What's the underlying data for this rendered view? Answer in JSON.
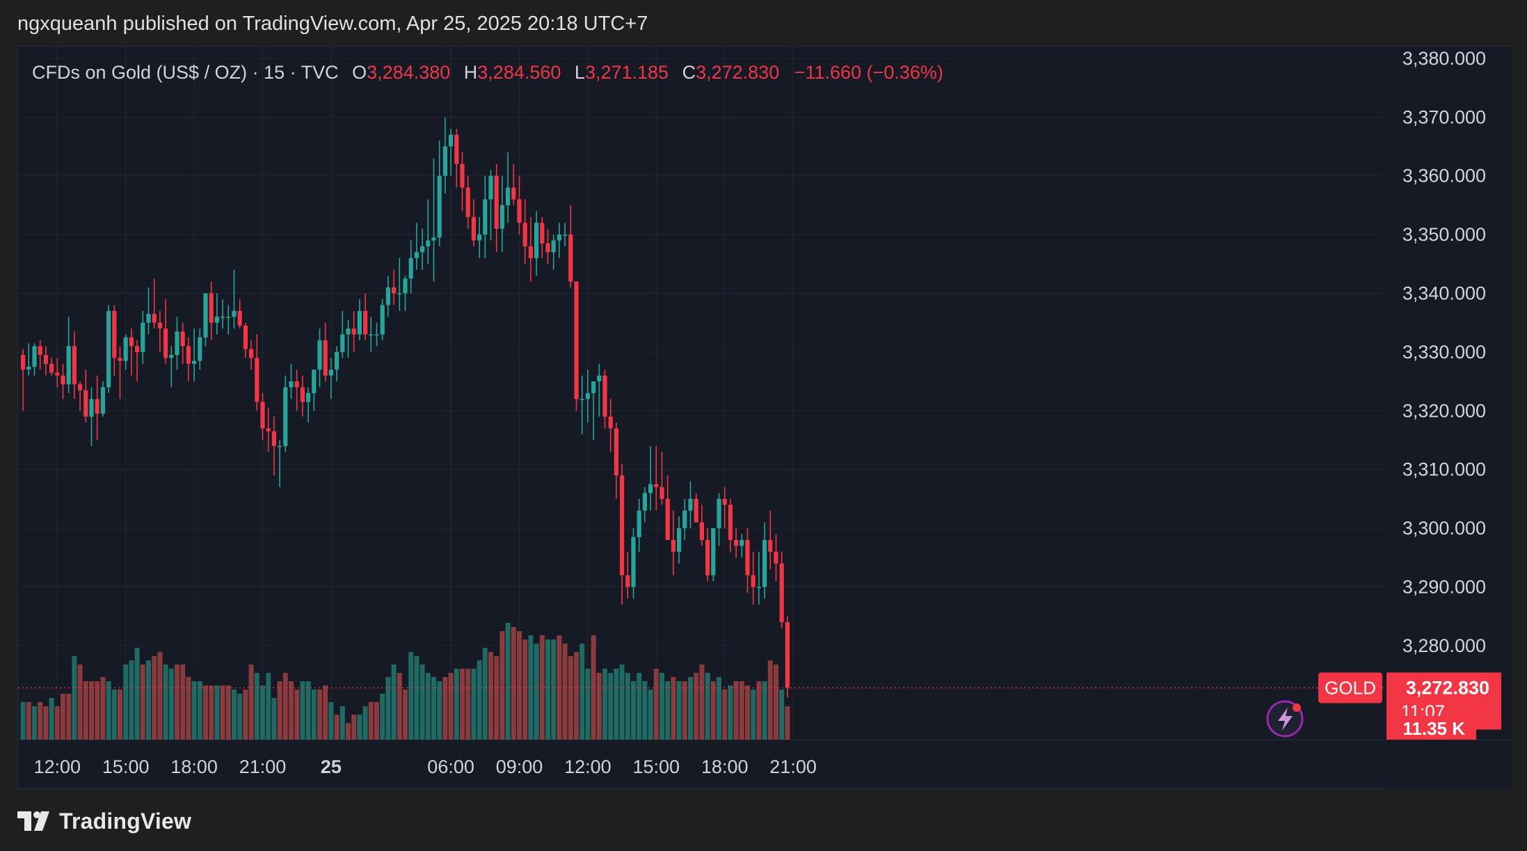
{
  "header": {
    "publisher_line": "ngxqueanh published on TradingView.com, Apr 25, 2025 20:18 UTC+7"
  },
  "legend": {
    "symbol": "CFDs on Gold (US$ / OZ) · 15 · TVC",
    "open_label": "O",
    "open": "3,284.380",
    "high_label": "H",
    "high": "3,284.560",
    "low_label": "L",
    "low": "3,271.185",
    "close_label": "C",
    "close": "3,272.830",
    "change": "−11.660 (−0.36%)"
  },
  "price_tag": {
    "ticker": "GOLD",
    "price": "3,272.830",
    "countdown": "11:07",
    "volume": "11.35 K"
  },
  "footer": {
    "brand": "TradingView"
  },
  "colors": {
    "up": "#26a69a",
    "down": "#f23645",
    "vol_up": "#1f6b63",
    "vol_down": "#8a3b3e",
    "grid": "#232733",
    "text": "#d1d4dc"
  },
  "chart_data": {
    "type": "candlestick",
    "symbol": "CFDs on Gold (US$ / OZ)",
    "interval": "15",
    "ylim": [
      3264,
      3382
    ],
    "y_ticks": [
      "3,380.000",
      "3,370.000",
      "3,360.000",
      "3,350.000",
      "3,340.000",
      "3,330.000",
      "3,320.000",
      "3,310.000",
      "3,300.000",
      "3,290.000",
      "3,280.000"
    ],
    "y_tick_values": [
      3380,
      3370,
      3360,
      3350,
      3340,
      3330,
      3320,
      3310,
      3300,
      3290,
      3280
    ],
    "x_ticks": [
      {
        "label": "12:00",
        "bar": 6
      },
      {
        "label": "15:00",
        "bar": 18
      },
      {
        "label": "18:00",
        "bar": 30
      },
      {
        "label": "21:00",
        "bar": 42
      },
      {
        "label": "25",
        "bar": 54
      },
      {
        "label": "06:00",
        "bar": 75
      },
      {
        "label": "09:00",
        "bar": 87
      },
      {
        "label": "12:00",
        "bar": 99
      },
      {
        "label": "15:00",
        "bar": 111
      },
      {
        "label": "18:00",
        "bar": 123
      },
      {
        "label": "21:00",
        "bar": 135
      }
    ],
    "last_price": 3272.83,
    "volume_max": 31,
    "candles": [
      [
        3329.5,
        3330.5,
        3320,
        3327
      ],
      [
        3327,
        3331.5,
        3326,
        3327.5
      ],
      [
        3327.5,
        3331.5,
        3326,
        3331
      ],
      [
        3331,
        3332,
        3327,
        3329.5
      ],
      [
        3329.5,
        3331,
        3326,
        3328
      ],
      [
        3328,
        3329,
        3326,
        3326.5
      ],
      [
        3326.5,
        3329,
        3324,
        3326
      ],
      [
        3326,
        3328,
        3322,
        3324.5
      ],
      [
        3324.5,
        3336,
        3323,
        3331
      ],
      [
        3331,
        3333.5,
        3322,
        3324.5
      ],
      [
        3324.5,
        3325,
        3320,
        3323.5
      ],
      [
        3323.5,
        3327,
        3318,
        3319
      ],
      [
        3319,
        3324,
        3314,
        3322
      ],
      [
        3322,
        3326,
        3315,
        3319.5
      ],
      [
        3319.5,
        3325,
        3319,
        3324
      ],
      [
        3324,
        3338,
        3323,
        3337
      ],
      [
        3337,
        3338,
        3326,
        3329
      ],
      [
        3329,
        3331,
        3322,
        3328.5
      ],
      [
        3328.5,
        3333,
        3327,
        3332.5
      ],
      [
        3332.5,
        3334,
        3326,
        3331
      ],
      [
        3331,
        3332,
        3325,
        3330
      ],
      [
        3330,
        3337,
        3328,
        3335
      ],
      [
        3335,
        3341,
        3333,
        3336.5
      ],
      [
        3336.5,
        3342.5,
        3334,
        3335
      ],
      [
        3335,
        3337,
        3330,
        3334
      ],
      [
        3334,
        3339,
        3328,
        3329
      ],
      [
        3329,
        3331,
        3324,
        3329.5
      ],
      [
        3329.5,
        3336,
        3327,
        3333.5
      ],
      [
        3333.5,
        3335,
        3328,
        3331
      ],
      [
        3331,
        3332.5,
        3325,
        3328
      ],
      [
        3328,
        3334,
        3325,
        3328.5
      ],
      [
        3328.5,
        3334,
        3327,
        3332.5
      ],
      [
        3332.5,
        3340,
        3331,
        3340
      ],
      [
        3340,
        3342,
        3332,
        3335
      ],
      [
        3335,
        3340,
        3333,
        3336
      ],
      [
        3336,
        3339,
        3334,
        3336
      ],
      [
        3336,
        3338,
        3333,
        3336
      ],
      [
        3336,
        3344,
        3334,
        3337
      ],
      [
        3337,
        3339,
        3334,
        3334.5
      ],
      [
        3334.5,
        3335,
        3329,
        3330.5
      ],
      [
        3330.5,
        3332,
        3327,
        3329
      ],
      [
        3329,
        3333,
        3320,
        3321.5
      ],
      [
        3321.5,
        3323,
        3315,
        3317
      ],
      [
        3317,
        3320.5,
        3313,
        3316.5
      ],
      [
        3316.5,
        3319,
        3309,
        3314
      ],
      [
        3314,
        3315,
        3307,
        3314
      ],
      [
        3314,
        3326,
        3313,
        3324
      ],
      [
        3324,
        3328,
        3322,
        3325
      ],
      [
        3325,
        3327,
        3320,
        3324
      ],
      [
        3324,
        3326,
        3319,
        3321.5
      ],
      [
        3321.5,
        3324,
        3318,
        3323
      ],
      [
        3323,
        3327,
        3320,
        3327
      ],
      [
        3327,
        3334,
        3324,
        3332
      ],
      [
        3332,
        3335,
        3325,
        3326
      ],
      [
        3326,
        3329,
        3322,
        3327
      ],
      [
        3327,
        3331,
        3325,
        3330
      ],
      [
        3330,
        3337,
        3329,
        3333
      ],
      [
        3333,
        3335.5,
        3329,
        3334
      ],
      [
        3334,
        3337,
        3330,
        3333
      ],
      [
        3333,
        3339,
        3332,
        3337
      ],
      [
        3337,
        3340,
        3332,
        3333
      ],
      [
        3333,
        3336,
        3330,
        3333
      ],
      [
        3333,
        3335,
        3331,
        3333
      ],
      [
        3333,
        3339,
        3332,
        3338
      ],
      [
        3338,
        3343,
        3336,
        3341
      ],
      [
        3341,
        3344,
        3338,
        3340
      ],
      [
        3340,
        3346,
        3337,
        3340
      ],
      [
        3340,
        3343,
        3337,
        3342.5
      ],
      [
        3342.5,
        3349,
        3340,
        3346
      ],
      [
        3346,
        3352,
        3344,
        3347
      ],
      [
        3347,
        3351,
        3344,
        3348
      ],
      [
        3348,
        3356,
        3345,
        3349
      ],
      [
        3349,
        3363,
        3342,
        3349.5
      ],
      [
        3349.5,
        3366,
        3348,
        3360
      ],
      [
        3360,
        3370,
        3357,
        3365
      ],
      [
        3365,
        3368,
        3360,
        3367
      ],
      [
        3367,
        3368,
        3358,
        3362
      ],
      [
        3362,
        3364,
        3354,
        3358
      ],
      [
        3358,
        3360,
        3351,
        3353
      ],
      [
        3353,
        3356,
        3348,
        3349
      ],
      [
        3349,
        3353,
        3346,
        3350
      ],
      [
        3350,
        3360,
        3346,
        3356
      ],
      [
        3356,
        3361,
        3349,
        3360
      ],
      [
        3360,
        3362,
        3347,
        3351
      ],
      [
        3351,
        3360,
        3347,
        3355
      ],
      [
        3355,
        3364,
        3352,
        3358
      ],
      [
        3358,
        3362,
        3355,
        3356
      ],
      [
        3356,
        3360,
        3350,
        3352
      ],
      [
        3352,
        3356,
        3345,
        3348
      ],
      [
        3348,
        3353,
        3342,
        3346
      ],
      [
        3346,
        3354,
        3343,
        3352
      ],
      [
        3352,
        3353,
        3346,
        3348.5
      ],
      [
        3348.5,
        3351,
        3345,
        3347
      ],
      [
        3347,
        3350,
        3344,
        3349
      ],
      [
        3349,
        3352,
        3346,
        3350
      ],
      [
        3350,
        3352,
        3348,
        3350
      ],
      [
        3350,
        3355,
        3341,
        3342
      ],
      [
        3342,
        3342,
        3320,
        3322
      ],
      [
        3322,
        3326,
        3316,
        3322
      ],
      [
        3322,
        3327,
        3318,
        3323
      ],
      [
        3323,
        3324,
        3315,
        3325
      ],
      [
        3325,
        3328,
        3319,
        3326
      ],
      [
        3326,
        3327,
        3317,
        3319
      ],
      [
        3319,
        3322,
        3313,
        3317
      ],
      [
        3317,
        3318,
        3305,
        3309
      ],
      [
        3309,
        3311,
        3287,
        3292
      ],
      [
        3292,
        3296,
        3288,
        3290
      ],
      [
        3290,
        3300,
        3288,
        3298.5
      ],
      [
        3298.5,
        3305,
        3296,
        3303
      ],
      [
        3303,
        3307,
        3301,
        3306
      ],
      [
        3306,
        3314,
        3303,
        3307.5
      ],
      [
        3307.5,
        3314,
        3303,
        3307
      ],
      [
        3307,
        3313,
        3304,
        3305
      ],
      [
        3305,
        3309,
        3298,
        3298
      ],
      [
        3298,
        3303,
        3292,
        3296
      ],
      [
        3296,
        3302,
        3294,
        3300
      ],
      [
        3300,
        3305,
        3298,
        3303
      ],
      [
        3303,
        3308,
        3300,
        3305
      ],
      [
        3305,
        3306,
        3301,
        3301
      ],
      [
        3301,
        3304,
        3297,
        3298
      ],
      [
        3298,
        3300,
        3291,
        3292
      ],
      [
        3292,
        3300,
        3291,
        3300
      ],
      [
        3300,
        3306,
        3297,
        3305
      ],
      [
        3305,
        3307,
        3300,
        3304
      ],
      [
        3304,
        3305,
        3296,
        3298
      ],
      [
        3298,
        3300,
        3295,
        3297
      ],
      [
        3297,
        3299,
        3295,
        3298
      ],
      [
        3298,
        3300,
        3289,
        3292
      ],
      [
        3292,
        3296,
        3287,
        3290
      ],
      [
        3290,
        3296,
        3287,
        3290
      ],
      [
        3290,
        3301,
        3288,
        3298
      ],
      [
        3298,
        3303,
        3293,
        3296
      ],
      [
        3296,
        3299,
        3291,
        3294
      ],
      [
        3294,
        3296,
        3283,
        3284
      ],
      [
        3284,
        3285,
        3271.185,
        3272.83
      ]
    ],
    "volumes": [
      [
        9,
        1
      ],
      [
        9,
        0
      ],
      [
        8,
        1
      ],
      [
        9,
        0
      ],
      [
        8,
        0
      ],
      [
        10,
        1
      ],
      [
        8,
        0
      ],
      [
        11,
        0
      ],
      [
        11,
        0
      ],
      [
        20,
        1
      ],
      [
        18,
        0
      ],
      [
        14,
        0
      ],
      [
        14,
        0
      ],
      [
        14,
        0
      ],
      [
        15,
        0
      ],
      [
        14,
        1
      ],
      [
        12,
        1
      ],
      [
        12,
        0
      ],
      [
        18,
        1
      ],
      [
        19,
        1
      ],
      [
        22,
        1
      ],
      [
        18,
        0
      ],
      [
        19,
        1
      ],
      [
        20,
        0
      ],
      [
        21,
        0
      ],
      [
        18,
        1
      ],
      [
        17,
        1
      ],
      [
        18,
        0
      ],
      [
        18,
        0
      ],
      [
        15,
        0
      ],
      [
        14,
        1
      ],
      [
        14,
        1
      ],
      [
        13,
        0
      ],
      [
        13,
        0
      ],
      [
        13,
        1
      ],
      [
        13,
        0
      ],
      [
        13,
        0
      ],
      [
        12,
        1
      ],
      [
        11,
        1
      ],
      [
        12,
        0
      ],
      [
        18,
        0
      ],
      [
        16,
        1
      ],
      [
        13,
        1
      ],
      [
        16,
        1
      ],
      [
        10,
        1
      ],
      [
        14,
        0
      ],
      [
        16,
        0
      ],
      [
        14,
        0
      ],
      [
        12,
        0
      ],
      [
        14,
        1
      ],
      [
        14,
        1
      ],
      [
        12,
        1
      ],
      [
        12,
        0
      ],
      [
        13,
        0
      ],
      [
        9,
        1
      ],
      [
        6,
        0
      ],
      [
        8,
        1
      ],
      [
        4,
        0
      ],
      [
        6,
        0
      ],
      [
        6,
        1
      ],
      [
        8,
        1
      ],
      [
        9,
        0
      ],
      [
        9,
        0
      ],
      [
        11,
        1
      ],
      [
        15,
        1
      ],
      [
        18,
        1
      ],
      [
        16,
        0
      ],
      [
        12,
        0
      ],
      [
        21,
        1
      ],
      [
        20,
        1
      ],
      [
        18,
        1
      ],
      [
        16,
        1
      ],
      [
        15,
        1
      ],
      [
        14,
        1
      ],
      [
        15,
        0
      ],
      [
        16,
        0
      ],
      [
        17,
        1
      ],
      [
        17,
        0
      ],
      [
        17,
        0
      ],
      [
        17,
        1
      ],
      [
        19,
        1
      ],
      [
        22,
        1
      ],
      [
        21,
        0
      ],
      [
        20,
        0
      ],
      [
        26,
        0
      ],
      [
        28,
        1
      ],
      [
        27,
        0
      ],
      [
        26,
        0
      ],
      [
        24,
        0
      ],
      [
        25,
        1
      ],
      [
        23,
        1
      ],
      [
        25,
        0
      ],
      [
        24,
        1
      ],
      [
        24,
        1
      ],
      [
        25,
        0
      ],
      [
        23,
        0
      ],
      [
        20,
        0
      ],
      [
        21,
        0
      ],
      [
        23,
        1
      ],
      [
        17,
        1
      ],
      [
        25,
        0
      ],
      [
        16,
        0
      ],
      [
        17,
        1
      ],
      [
        16,
        1
      ],
      [
        17,
        1
      ],
      [
        18,
        1
      ],
      [
        16,
        1
      ],
      [
        14,
        1
      ],
      [
        16,
        1
      ],
      [
        14,
        1
      ],
      [
        12,
        1
      ],
      [
        17,
        0
      ],
      [
        16,
        1
      ],
      [
        14,
        1
      ],
      [
        15,
        0
      ],
      [
        14,
        1
      ],
      [
        14,
        0
      ],
      [
        15,
        1
      ],
      [
        16,
        0
      ],
      [
        18,
        0
      ],
      [
        16,
        1
      ],
      [
        14,
        0
      ],
      [
        15,
        1
      ],
      [
        12,
        0
      ],
      [
        13,
        1
      ],
      [
        14,
        0
      ],
      [
        14,
        0
      ],
      [
        13,
        0
      ],
      [
        12,
        1
      ],
      [
        14,
        0
      ],
      [
        14,
        1
      ],
      [
        19,
        0
      ],
      [
        18,
        0
      ],
      [
        12,
        1
      ],
      [
        8,
        0
      ]
    ]
  }
}
